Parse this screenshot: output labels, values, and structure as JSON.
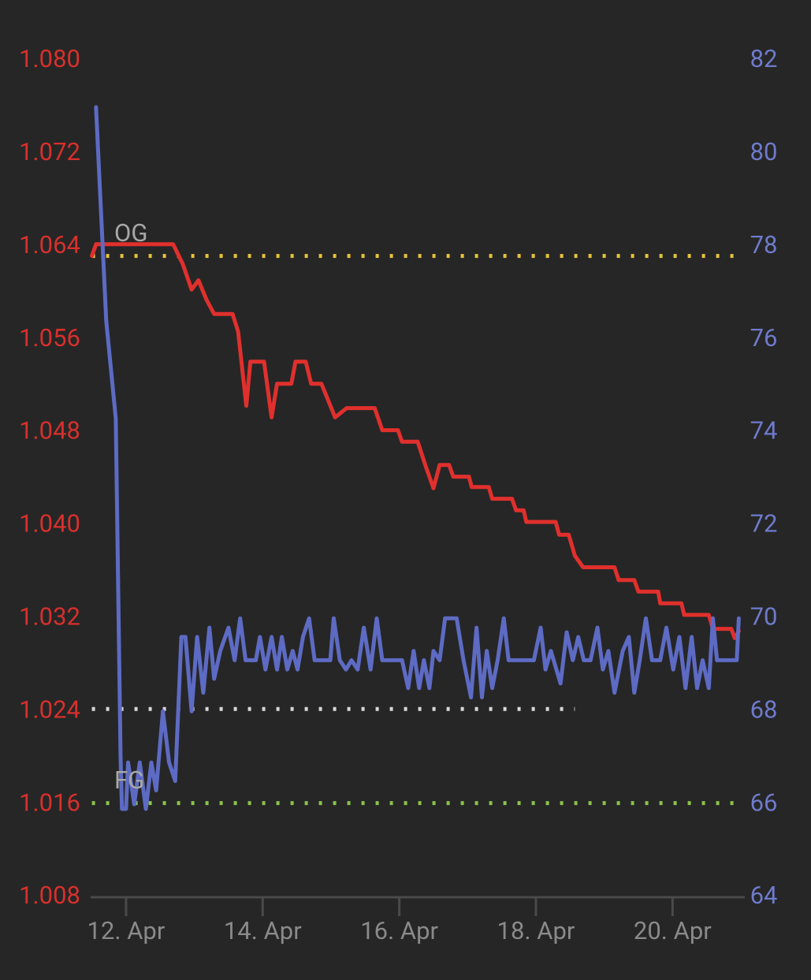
{
  "chart_data": {
    "type": "line",
    "xlim": [
      11.5,
      21.0
    ],
    "xticks": [
      {
        "value": 12,
        "label": "12. Apr"
      },
      {
        "value": 14,
        "label": "14. Apr"
      },
      {
        "value": 16,
        "label": "16. Apr"
      },
      {
        "value": 18,
        "label": "18. Apr"
      },
      {
        "value": 20,
        "label": "20. Apr"
      }
    ],
    "ylim": [
      1.008,
      1.08
    ],
    "yticks": [
      1.008,
      1.016,
      1.024,
      1.032,
      {
        "value": 1.04,
        "label": "1.040"
      },
      1.048,
      1.056,
      1.064,
      1.072,
      {
        "value": 1.08,
        "label": "1.080"
      }
    ],
    "y_tick_color": "#d8302c",
    "y2lim": [
      64,
      82
    ],
    "y2ticks": [
      64,
      66,
      68,
      70,
      72,
      74,
      76,
      78,
      80,
      82
    ],
    "y2_tick_color": "#6e7bcc",
    "reference_lines": [
      {
        "label": "OG",
        "value": 1.0632,
        "color": "#e8c33a"
      },
      {
        "value": 1.0242,
        "color": "#d8d8d8",
        "x_end": 18.57
      },
      {
        "label": "FG",
        "value": 1.0161,
        "color": "#8bc34a"
      }
    ],
    "series": [
      {
        "color": "#e0302d",
        "axis": "y",
        "x": [
          11.5,
          11.56,
          12.69,
          12.83,
          12.96,
          13.06,
          13.18,
          13.29,
          13.56,
          13.64,
          13.76,
          13.82,
          14.02,
          14.13,
          14.21,
          14.42,
          14.48,
          14.63,
          14.71,
          14.86,
          15.06,
          15.23,
          15.46,
          15.64,
          15.75,
          15.98,
          16.04,
          16.27,
          16.38,
          16.5,
          16.59,
          16.73,
          16.79,
          17.02,
          17.06,
          17.31,
          17.36,
          17.65,
          17.71,
          17.82,
          17.86,
          18.29,
          18.34,
          18.48,
          18.57,
          18.69,
          19.15,
          19.21,
          19.44,
          19.5,
          19.79,
          19.82,
          20.13,
          20.17,
          20.53,
          20.59,
          20.86,
          20.91,
          20.97
        ],
        "values": [
          1.0632,
          1.0642,
          1.0642,
          1.0625,
          1.0603,
          1.0611,
          1.0594,
          1.0582,
          1.0582,
          1.0567,
          1.0503,
          1.0541,
          1.0541,
          1.0493,
          1.0522,
          1.0522,
          1.0541,
          1.0541,
          1.0522,
          1.0522,
          1.0493,
          1.0501,
          1.0501,
          1.0501,
          1.0482,
          1.0482,
          1.0472,
          1.0472,
          1.0452,
          1.0432,
          1.0452,
          1.0452,
          1.0442,
          1.0442,
          1.0433,
          1.0433,
          1.0423,
          1.0423,
          1.0413,
          1.0413,
          1.0403,
          1.0403,
          1.0392,
          1.0392,
          1.0374,
          1.0364,
          1.0364,
          1.0353,
          1.0353,
          1.0343,
          1.0343,
          1.0333,
          1.0333,
          1.0323,
          1.0323,
          1.0311,
          1.0311,
          1.0303,
          1.0309
        ]
      },
      {
        "color": "#5d6bc4",
        "axis": "y2",
        "x": [
          11.56,
          11.71,
          11.85,
          11.92,
          11.94,
          12.0,
          12.03,
          12.12,
          12.2,
          12.29,
          12.37,
          12.44,
          12.54,
          12.63,
          12.72,
          12.81,
          12.87,
          12.96,
          13.04,
          13.13,
          13.22,
          13.29,
          13.38,
          13.5,
          13.59,
          13.67,
          13.75,
          13.9,
          13.96,
          14.04,
          14.13,
          14.21,
          14.28,
          14.36,
          14.44,
          14.51,
          14.59,
          14.68,
          14.76,
          14.99,
          15.04,
          15.13,
          15.22,
          15.3,
          15.39,
          15.48,
          15.58,
          15.67,
          15.75,
          16.04,
          16.13,
          16.21,
          16.29,
          16.36,
          16.44,
          16.5,
          16.59,
          16.67,
          16.84,
          16.94,
          17.05,
          17.13,
          17.21,
          17.28,
          17.36,
          17.44,
          17.53,
          17.6,
          17.97,
          18.07,
          18.14,
          18.22,
          18.36,
          18.45,
          18.54,
          18.62,
          18.7,
          18.8,
          18.9,
          18.98,
          19.06,
          19.15,
          19.27,
          19.36,
          19.44,
          19.52,
          19.61,
          19.7,
          19.82,
          19.91,
          20.01,
          20.1,
          20.19,
          20.28,
          20.36,
          20.44,
          20.53,
          20.59,
          20.65,
          20.94,
          20.97
        ],
        "values": [
          81.0,
          76.4,
          74.3,
          67.0,
          65.9,
          65.9,
          66.9,
          66.0,
          66.9,
          65.9,
          66.9,
          66.3,
          68.0,
          66.9,
          66.5,
          69.6,
          69.6,
          68.0,
          69.6,
          68.4,
          69.8,
          68.7,
          69.3,
          69.8,
          69.1,
          70.0,
          69.1,
          69.1,
          69.6,
          68.9,
          69.6,
          68.9,
          69.6,
          68.9,
          69.3,
          68.9,
          69.6,
          70.0,
          69.1,
          69.1,
          70.0,
          69.1,
          68.9,
          69.1,
          68.9,
          69.8,
          68.9,
          70.0,
          69.1,
          69.1,
          68.5,
          69.3,
          68.5,
          69.1,
          68.5,
          69.3,
          69.1,
          70.0,
          70.0,
          69.1,
          68.3,
          69.8,
          68.3,
          69.3,
          68.5,
          69.1,
          70.0,
          69.1,
          69.1,
          69.8,
          68.9,
          69.3,
          68.6,
          69.7,
          69.1,
          69.6,
          69.1,
          69.1,
          69.8,
          68.9,
          69.3,
          68.4,
          69.3,
          69.6,
          68.4,
          69.1,
          70.0,
          69.1,
          69.1,
          69.8,
          68.9,
          69.6,
          68.5,
          69.6,
          68.5,
          69.1,
          68.5,
          70.0,
          69.1,
          69.1,
          70.0
        ]
      }
    ]
  }
}
